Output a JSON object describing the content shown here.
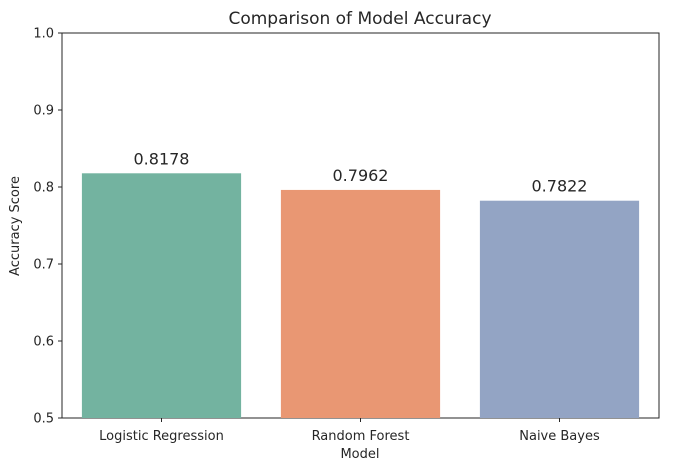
{
  "chart_data": {
    "type": "bar",
    "title": "Comparison of Model Accuracy",
    "xlabel": "Model",
    "ylabel": "Accuracy Score",
    "categories": [
      "Logistic Regression",
      "Random Forest",
      "Naive Bayes"
    ],
    "values": [
      0.8178,
      0.7962,
      0.7822
    ],
    "value_labels": [
      "0.8178",
      "0.7962",
      "0.7822"
    ],
    "colors": [
      "#73b3a0",
      "#e99773",
      "#93a4c4"
    ],
    "ylim": [
      0.5,
      1.0
    ],
    "yticks": [
      0.5,
      0.6,
      0.7,
      0.8,
      0.9,
      1.0
    ],
    "ytick_labels": [
      "0.5",
      "0.6",
      "0.7",
      "0.8",
      "0.9",
      "1.0"
    ],
    "grid": false,
    "legend": "none"
  }
}
